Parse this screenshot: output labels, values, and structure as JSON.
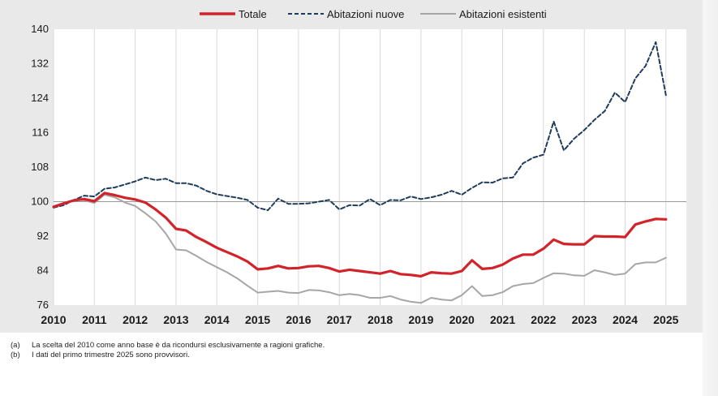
{
  "chart_data": {
    "type": "line",
    "title": "",
    "xlabel": "",
    "ylabel": "",
    "ylim": [
      76,
      140
    ],
    "yticks": [
      76,
      84,
      92,
      100,
      108,
      116,
      124,
      132,
      140
    ],
    "xlim": [
      2010,
      2025.5
    ],
    "xticks": [
      2010,
      2011,
      2012,
      2013,
      2014,
      2015,
      2016,
      2017,
      2018,
      2019,
      2020,
      2021,
      2022,
      2023,
      2024,
      2025
    ],
    "reference_line": 100,
    "grid": "vertical",
    "legend_position": "top",
    "series": [
      {
        "name": "Totale",
        "color": "#d2232a",
        "style": "solid",
        "x": [
          2010,
          2010.25,
          2010.5,
          2010.75,
          2011,
          2011.25,
          2011.5,
          2011.75,
          2012,
          2012.25,
          2012.5,
          2012.75,
          2013,
          2013.25,
          2013.5,
          2013.75,
          2014,
          2014.25,
          2014.5,
          2014.75,
          2015,
          2015.25,
          2015.5,
          2015.75,
          2016,
          2016.25,
          2016.5,
          2016.75,
          2017,
          2017.25,
          2017.5,
          2017.75,
          2018,
          2018.25,
          2018.5,
          2018.75,
          2019,
          2019.25,
          2019.5,
          2019.75,
          2020,
          2020.25,
          2020.5,
          2020.75,
          2021,
          2021.25,
          2021.5,
          2021.75,
          2022,
          2022.25,
          2022.5,
          2022.75,
          2023,
          2023.25,
          2023.5,
          2023.75,
          2024,
          2024.25,
          2024.5,
          2024.75,
          2025
        ],
        "values": [
          98.8,
          99.6,
          100.3,
          100.6,
          100.1,
          102.0,
          101.5,
          100.9,
          100.5,
          99.8,
          98.2,
          96.3,
          93.7,
          93.3,
          91.8,
          90.6,
          89.3,
          88.3,
          87.3,
          86.1,
          84.3,
          84.5,
          85.1,
          84.5,
          84.6,
          85.0,
          85.1,
          84.6,
          83.8,
          84.2,
          83.9,
          83.6,
          83.3,
          83.9,
          83.2,
          83.0,
          82.7,
          83.6,
          83.4,
          83.3,
          83.9,
          86.4,
          84.4,
          84.6,
          85.4,
          86.8,
          87.7,
          87.7,
          89.1,
          91.2,
          90.2,
          90.1,
          90.1,
          92.0,
          91.9,
          91.9,
          91.8,
          94.7,
          95.4,
          96.0,
          95.9
        ]
      },
      {
        "name": "Abitazioni nuove",
        "color": "#1f3c5c",
        "style": "dashed",
        "x": [
          2010,
          2010.25,
          2010.5,
          2010.75,
          2011,
          2011.25,
          2011.5,
          2011.75,
          2012,
          2012.25,
          2012.5,
          2012.75,
          2013,
          2013.25,
          2013.5,
          2013.75,
          2014,
          2014.25,
          2014.5,
          2014.75,
          2015,
          2015.25,
          2015.5,
          2015.75,
          2016,
          2016.25,
          2016.5,
          2016.75,
          2017,
          2017.25,
          2017.5,
          2017.75,
          2018,
          2018.25,
          2018.5,
          2018.75,
          2019,
          2019.25,
          2019.5,
          2019.75,
          2020,
          2020.25,
          2020.5,
          2020.75,
          2021,
          2021.25,
          2021.5,
          2021.75,
          2022,
          2022.25,
          2022.5,
          2022.75,
          2023,
          2023.25,
          2023.5,
          2023.75,
          2024,
          2024.25,
          2024.5,
          2024.75,
          2025
        ],
        "values": [
          98.6,
          99.2,
          100.4,
          101.4,
          101.2,
          103.0,
          103.3,
          104.0,
          104.7,
          105.6,
          105.0,
          105.3,
          104.3,
          104.3,
          103.7,
          102.5,
          101.7,
          101.3,
          100.9,
          100.4,
          98.6,
          98.0,
          100.7,
          99.5,
          99.5,
          99.6,
          100.0,
          100.4,
          98.2,
          99.2,
          99.1,
          100.6,
          99.2,
          100.4,
          100.3,
          101.2,
          100.6,
          101.0,
          101.6,
          102.5,
          101.6,
          103.2,
          104.5,
          104.4,
          105.4,
          105.6,
          108.9,
          110.2,
          110.9,
          118.6,
          111.9,
          114.6,
          116.6,
          119.0,
          121.0,
          125.3,
          123.1,
          128.6,
          131.5,
          137.0,
          124.7
        ]
      },
      {
        "name": "Abitazioni esistenti",
        "color": "#a6a6a6",
        "style": "solid",
        "x": [
          2010,
          2010.25,
          2010.5,
          2010.75,
          2011,
          2011.25,
          2011.5,
          2011.75,
          2012,
          2012.25,
          2012.5,
          2012.75,
          2013,
          2013.25,
          2013.5,
          2013.75,
          2014,
          2014.25,
          2014.5,
          2014.75,
          2015,
          2015.25,
          2015.5,
          2015.75,
          2016,
          2016.25,
          2016.5,
          2016.75,
          2017,
          2017.25,
          2017.5,
          2017.75,
          2018,
          2018.25,
          2018.5,
          2018.75,
          2019,
          2019.25,
          2019.5,
          2019.75,
          2020,
          2020.25,
          2020.5,
          2020.75,
          2021,
          2021.25,
          2021.5,
          2021.75,
          2022,
          2022.25,
          2022.5,
          2022.75,
          2023,
          2023.25,
          2023.5,
          2023.75,
          2024,
          2024.25,
          2024.5,
          2024.75,
          2025
        ],
        "values": [
          98.9,
          99.7,
          100.4,
          100.3,
          99.7,
          101.6,
          101.0,
          99.8,
          99.0,
          97.3,
          95.4,
          92.6,
          88.9,
          88.7,
          87.4,
          86.0,
          84.8,
          83.6,
          82.2,
          80.5,
          78.9,
          79.1,
          79.3,
          78.9,
          78.8,
          79.5,
          79.4,
          79.0,
          78.3,
          78.6,
          78.3,
          77.7,
          77.7,
          78.1,
          77.3,
          76.8,
          76.5,
          77.7,
          77.3,
          77.1,
          78.3,
          80.4,
          78.1,
          78.3,
          79.0,
          80.4,
          80.9,
          81.1,
          82.3,
          83.4,
          83.3,
          82.9,
          82.8,
          84.1,
          83.6,
          83.0,
          83.3,
          85.5,
          85.9,
          85.9,
          87.0
        ]
      }
    ]
  },
  "notes": [
    {
      "key": "(a)",
      "text": "La scelta del 2010 come anno base è da ricondursi esclusivamente a ragioni grafiche."
    },
    {
      "key": "(b)",
      "text": "I dati del primo trimestre 2025 sono provvisori."
    }
  ]
}
